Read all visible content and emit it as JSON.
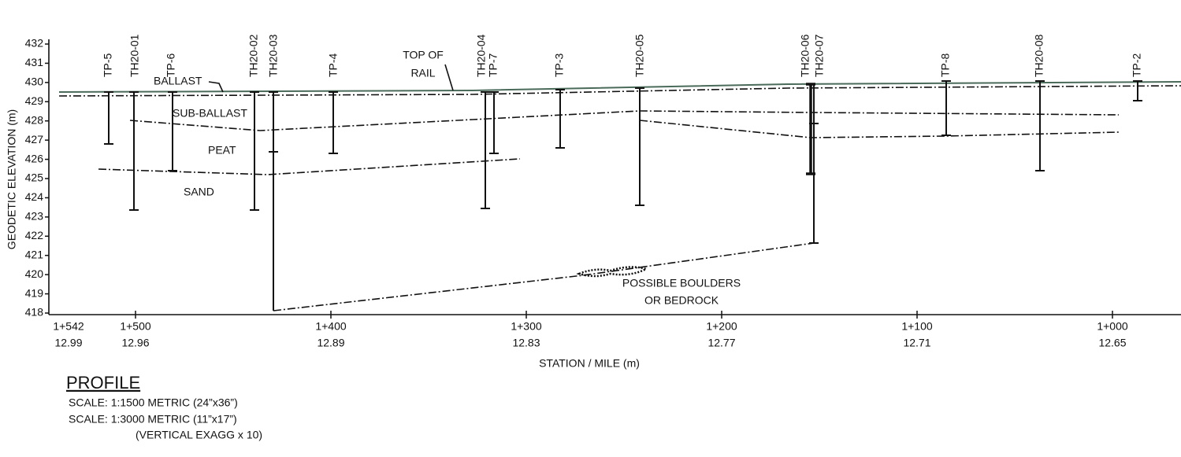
{
  "y_axis": {
    "title": "GEODETIC ELEVATION (m)",
    "ticks": [
      432,
      431,
      430,
      429,
      428,
      427,
      426,
      425,
      424,
      423,
      422,
      421,
      420,
      419,
      418
    ]
  },
  "x_axis": {
    "title": "STATION / MILE (m)",
    "ticks": [
      {
        "station": "1+542",
        "mile": "12.99"
      },
      {
        "station": "1+500",
        "mile": "12.96"
      },
      {
        "station": "1+400",
        "mile": "12.89"
      },
      {
        "station": "1+300",
        "mile": "12.83"
      },
      {
        "station": "1+200",
        "mile": "12.77"
      },
      {
        "station": "1+100",
        "mile": "12.71"
      },
      {
        "station": "1+000",
        "mile": "12.65"
      }
    ]
  },
  "boreholes": [
    "TP-5",
    "TH20-01",
    "TP-6",
    "TH20-02",
    "TH20-03",
    "TP-4",
    "TH20-04",
    "TP-7",
    "TP-3",
    "TH20-05",
    "TH20-06",
    "TH20-07",
    "TP-8",
    "TH20-08",
    "TP-2"
  ],
  "layers": [
    "BALLAST",
    "SUB-BALLAST",
    "PEAT",
    "SAND"
  ],
  "annotations": {
    "top_of_rail": [
      "TOP OF",
      "RAIL"
    ],
    "boulders": [
      "POSSIBLE BOULDERS",
      "OR BEDROCK"
    ]
  },
  "footer": {
    "title": "PROFILE",
    "lines": [
      "SCALE:  1:1500 METRIC  (24”x36”)",
      "SCALE:  1:3000  METRIC  (11”x17”)",
      "(VERTICAL EXAGG x 10)"
    ]
  }
}
